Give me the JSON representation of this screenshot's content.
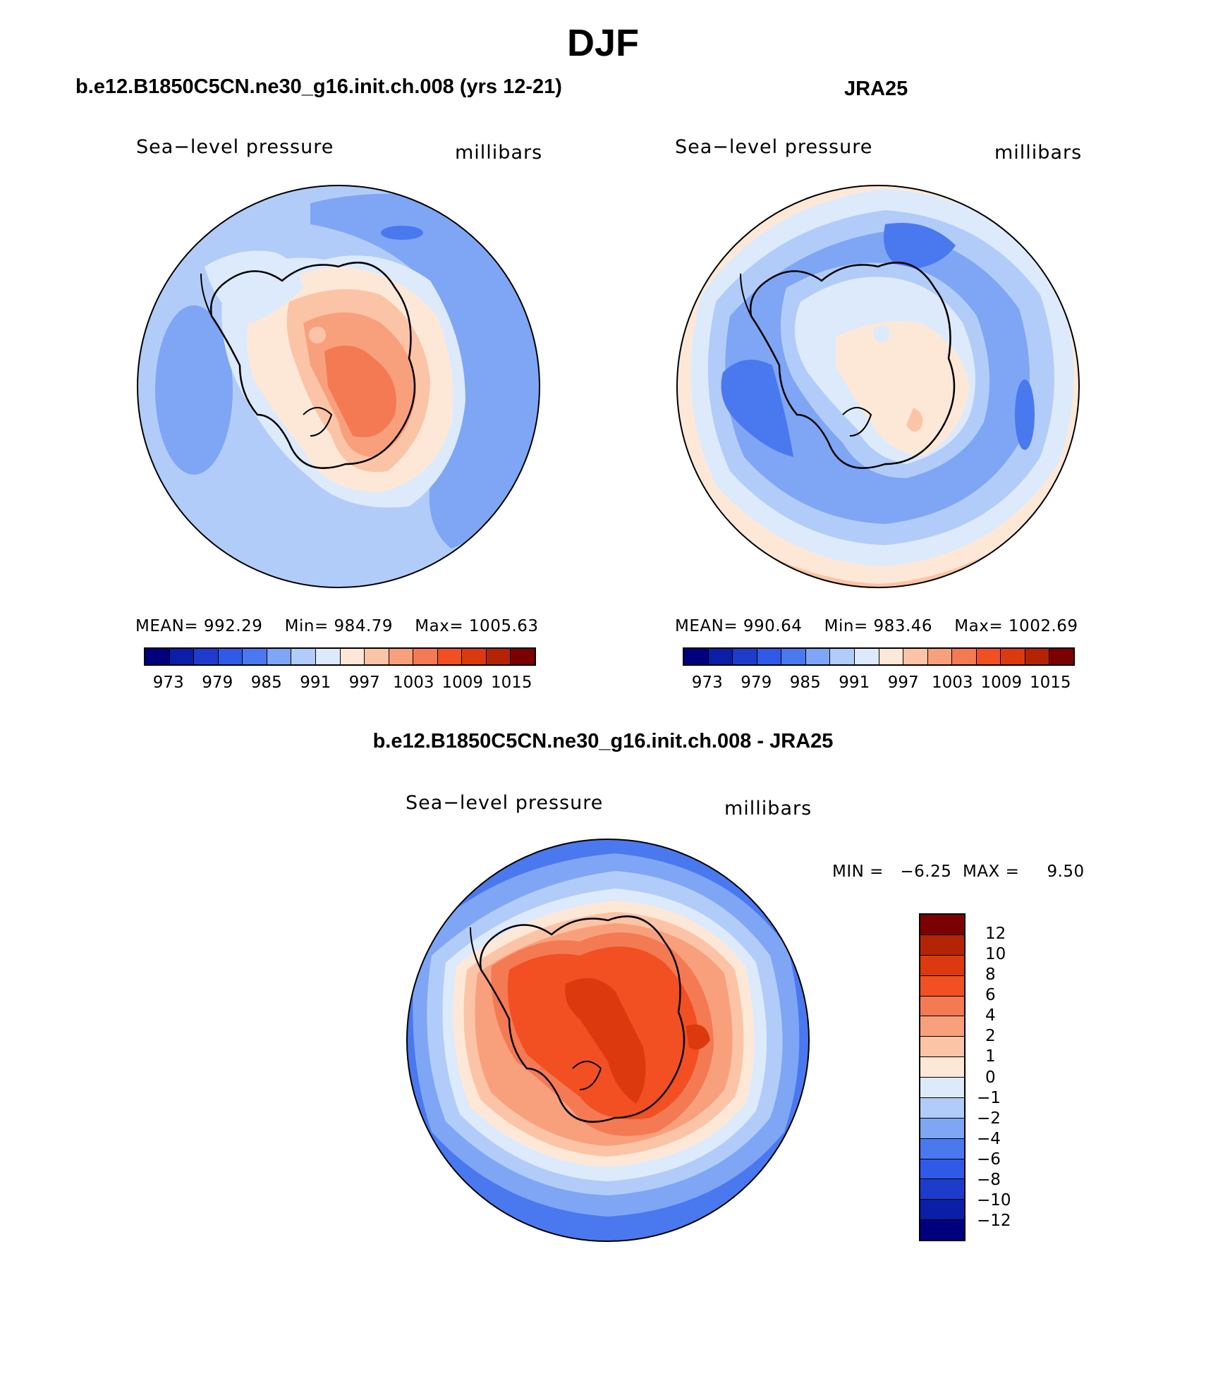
{
  "title": "DJF",
  "panels": {
    "model": {
      "title": "b.e12.B1850C5CN.ne30_g16.init.ch.008 (yrs 12-21)",
      "variable": "Sea−level pressure",
      "units": "millibars",
      "mean_label": "MEAN=",
      "mean": "992.29",
      "min_label": "Min=",
      "min": "984.79",
      "max_label": "Max=",
      "max": "1005.63"
    },
    "obs": {
      "title": "JRA25",
      "variable": "Sea−level pressure",
      "units": "millibars",
      "mean_label": "MEAN=",
      "mean": "990.64",
      "min_label": "Min=",
      "min": "983.46",
      "max_label": "Max=",
      "max": "1002.69"
    },
    "diff": {
      "title": "b.e12.B1850C5CN.ne30_g16.init.ch.008 - JRA25",
      "variable": "Sea−level pressure",
      "units": "millibars",
      "min_label": "MIN =",
      "min": "−6.25",
      "max_label": "MAX =",
      "max": "9.50"
    }
  },
  "colorbar": {
    "ticks": [
      "973",
      "979",
      "985",
      "991",
      "997",
      "1003",
      "1009",
      "1015"
    ],
    "colors": [
      "#00007f",
      "#0a1ea8",
      "#1e3ccc",
      "#2f5ae8",
      "#4a78ef",
      "#7ea6f5",
      "#b2ccf9",
      "#dceafc",
      "#fde8d8",
      "#fcc4a6",
      "#f8a07c",
      "#f47a54",
      "#f25022",
      "#dc3a0e",
      "#b42404",
      "#7d0000"
    ]
  },
  "diff_colorbar": {
    "labels": [
      "12",
      "10",
      "8",
      "6",
      "4",
      "2",
      "1",
      "0",
      "−1",
      "−2",
      "−4",
      "−6",
      "−8",
      "−10",
      "−12"
    ],
    "colors": [
      "#7d0000",
      "#b42404",
      "#dc3a0e",
      "#f25022",
      "#f47a54",
      "#f8a07c",
      "#fcc4a6",
      "#fde8d8",
      "#dceafc",
      "#b2ccf9",
      "#7ea6f5",
      "#4a78ef",
      "#2f5ae8",
      "#1e3ccc",
      "#0a1ea8",
      "#00007f"
    ]
  },
  "map_colors": {
    "c1": "#b2ccf9",
    "c2": "#dceafc",
    "c3": "#7ea6f5",
    "c4": "#4a78ef",
    "w1": "#fde8d8",
    "w2": "#fcc4a6",
    "w3": "#f8a07c",
    "w4": "#f47a54",
    "w5": "#f25022",
    "w6": "#dc3a0e"
  }
}
